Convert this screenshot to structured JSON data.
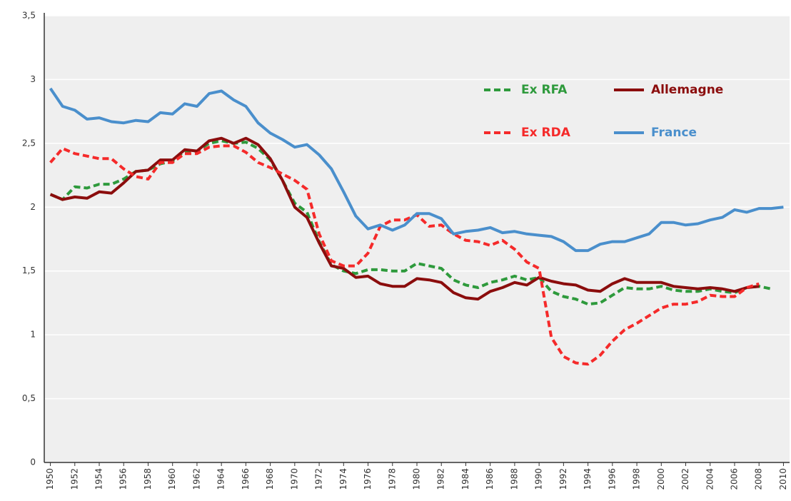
{
  "chart_data": {
    "type": "line",
    "x": [
      1950,
      1951,
      1952,
      1953,
      1954,
      1955,
      1956,
      1957,
      1958,
      1959,
      1960,
      1961,
      1962,
      1963,
      1964,
      1965,
      1966,
      1967,
      1968,
      1969,
      1970,
      1971,
      1972,
      1973,
      1974,
      1975,
      1976,
      1977,
      1978,
      1979,
      1980,
      1981,
      1982,
      1983,
      1984,
      1985,
      1986,
      1987,
      1988,
      1989,
      1990,
      1991,
      1992,
      1993,
      1994,
      1995,
      1996,
      1997,
      1998,
      1999,
      2000,
      2001,
      2002,
      2003,
      2004,
      2005,
      2006,
      2007,
      2008,
      2009,
      2010
    ],
    "series": [
      {
        "name": "Ex RFA",
        "color": "#2e9a3c",
        "dashed": true,
        "values": [
          2.1,
          2.06,
          2.16,
          2.15,
          2.18,
          2.18,
          2.22,
          2.28,
          2.29,
          2.34,
          2.36,
          2.44,
          2.44,
          2.5,
          2.52,
          2.5,
          2.51,
          2.46,
          2.37,
          2.21,
          2.03,
          1.96,
          1.73,
          1.55,
          1.5,
          1.48,
          1.51,
          1.51,
          1.5,
          1.5,
          1.56,
          1.54,
          1.52,
          1.43,
          1.39,
          1.37,
          1.41,
          1.43,
          1.46,
          1.43,
          1.45,
          1.34,
          1.3,
          1.28,
          1.24,
          1.25,
          1.31,
          1.37,
          1.36,
          1.36,
          1.38,
          1.35,
          1.34,
          1.34,
          1.36,
          1.34,
          1.33,
          1.37,
          1.38,
          1.36,
          null
        ]
      },
      {
        "name": "Allemagne",
        "color": "#8b0d0d",
        "dashed": false,
        "values": [
          2.1,
          2.06,
          2.08,
          2.07,
          2.12,
          2.11,
          2.19,
          2.28,
          2.29,
          2.37,
          2.37,
          2.45,
          2.44,
          2.52,
          2.54,
          2.5,
          2.54,
          2.49,
          2.38,
          2.21,
          2.0,
          1.92,
          1.72,
          1.54,
          1.52,
          1.45,
          1.46,
          1.4,
          1.38,
          1.38,
          1.44,
          1.43,
          1.41,
          1.33,
          1.29,
          1.28,
          1.34,
          1.37,
          1.41,
          1.39,
          1.45,
          1.42,
          1.4,
          1.39,
          1.35,
          1.34,
          1.4,
          1.44,
          1.41,
          1.41,
          1.41,
          1.38,
          1.37,
          1.36,
          1.37,
          1.36,
          1.34,
          1.37,
          1.38,
          null,
          null
        ]
      },
      {
        "name": "Ex RDA",
        "color": "#f52a2a",
        "dashed": true,
        "values": [
          2.35,
          2.46,
          2.42,
          2.4,
          2.38,
          2.38,
          2.3,
          2.24,
          2.22,
          2.35,
          2.35,
          2.42,
          2.42,
          2.47,
          2.48,
          2.48,
          2.43,
          2.35,
          2.31,
          2.26,
          2.21,
          2.14,
          1.79,
          1.58,
          1.54,
          1.54,
          1.64,
          1.85,
          1.9,
          1.9,
          1.94,
          1.85,
          1.86,
          1.79,
          1.74,
          1.73,
          1.7,
          1.74,
          1.67,
          1.57,
          1.52,
          0.98,
          0.83,
          0.78,
          0.77,
          0.84,
          0.95,
          1.04,
          1.09,
          1.15,
          1.21,
          1.24,
          1.24,
          1.26,
          1.31,
          1.3,
          1.3,
          1.37,
          1.4,
          null,
          null
        ]
      },
      {
        "name": "France",
        "color": "#4a8fcc",
        "dashed": false,
        "values": [
          2.93,
          2.79,
          2.76,
          2.69,
          2.7,
          2.67,
          2.66,
          2.68,
          2.67,
          2.74,
          2.73,
          2.81,
          2.79,
          2.89,
          2.91,
          2.84,
          2.79,
          2.66,
          2.58,
          2.53,
          2.47,
          2.49,
          2.41,
          2.3,
          2.12,
          1.93,
          1.83,
          1.86,
          1.82,
          1.86,
          1.95,
          1.95,
          1.91,
          1.79,
          1.81,
          1.82,
          1.84,
          1.8,
          1.81,
          1.79,
          1.78,
          1.77,
          1.73,
          1.66,
          1.66,
          1.71,
          1.73,
          1.73,
          1.76,
          1.79,
          1.88,
          1.88,
          1.86,
          1.87,
          1.9,
          1.92,
          1.98,
          1.96,
          1.99,
          1.99,
          2.0
        ]
      }
    ],
    "xlim": [
      1949.5,
      2010.5
    ],
    "xticks": [
      1950,
      1952,
      1954,
      1956,
      1958,
      1960,
      1962,
      1964,
      1966,
      1968,
      1970,
      1972,
      1974,
      1976,
      1978,
      1980,
      1982,
      1984,
      1986,
      1988,
      1990,
      1992,
      1994,
      1996,
      1998,
      2000,
      2002,
      2004,
      2006,
      2008,
      2010
    ],
    "ylim": [
      0,
      3.5
    ],
    "yticks": [
      0,
      {
        "value": 0.5,
        "label": "0,5"
      },
      1,
      {
        "value": 1.5,
        "label": "1,5"
      },
      2,
      {
        "value": 2.5,
        "label": "2,5"
      },
      3,
      {
        "value": 3.5,
        "label": "3,5"
      }
    ],
    "grid": true,
    "legend": "upper right"
  }
}
